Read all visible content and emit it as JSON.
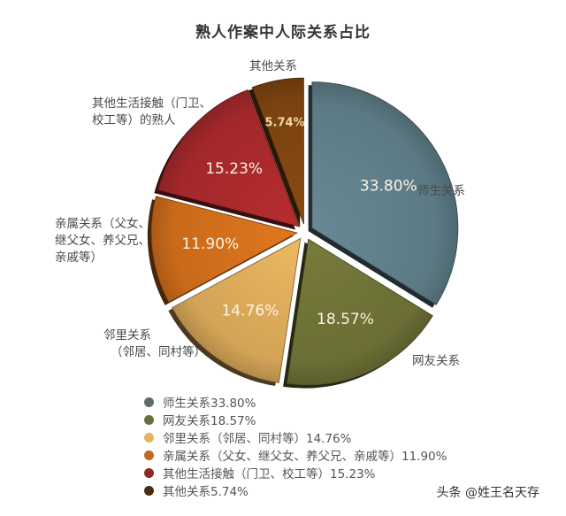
{
  "title": "熟人作案中人际关系占比",
  "chart_data": {
    "type": "pie",
    "title": "熟人作案中人际关系占比",
    "start_angle_deg": 0,
    "direction": "clockwise",
    "exploded": true,
    "slices": [
      {
        "label": "师生关系",
        "value": 33.8,
        "display": "33.80%",
        "color": "#5c7a84",
        "callout": [
          "师生关系"
        ],
        "legend": "师生关系33.80%"
      },
      {
        "label": "网友关系",
        "value": 18.57,
        "display": "18.57%",
        "color": "#6b6e35",
        "callout": [
          "网友关系"
        ],
        "legend": "网友关系18.57%"
      },
      {
        "label": "邻里关系（邻居、同村等）",
        "value": 14.76,
        "display": "14.76%",
        "color": "#d3a457",
        "callout": [
          "邻里关系",
          "（邻居、同村等）"
        ],
        "legend": "邻里关系（邻居、同村等）14.76%"
      },
      {
        "label": "亲属关系（父女、继父女、养父兄、亲戚等）",
        "value": 11.9,
        "display": "11.90%",
        "color": "#c96a1a",
        "callout": [
          "亲属关系（父女、",
          "继父女、养父兄、",
          "亲戚等）"
        ],
        "legend": "亲属关系（父女、继父女、养父兄、亲戚等）11.90%"
      },
      {
        "label": "其他生活接触（门卫、校工等）的熟人",
        "value": 15.23,
        "display": "15.23%",
        "color": "#a3282a",
        "callout": [
          "其他生活接触（门卫、",
          "校工等）的熟人"
        ],
        "legend": "其他生活接触（门卫、校工等）15.23%"
      },
      {
        "label": "其他关系",
        "value": 5.74,
        "display": "5.74%",
        "color": "#7a4210",
        "callout": [
          "其他关系"
        ],
        "legend": "其他关系5.74%"
      }
    ],
    "legend_position": "bottom"
  },
  "callouts": {
    "teacher": [
      "师生关系"
    ],
    "netfriend": [
      "网友关系"
    ],
    "neighbor": [
      "邻里关系",
      "（邻居、同村等）"
    ],
    "relative": [
      "亲属关系（父女、",
      "继父女、养父兄、",
      "亲戚等）"
    ],
    "daily": [
      "其他生活接触（门卫、",
      "校工等）的熟人"
    ],
    "other": [
      "其他关系"
    ]
  },
  "legend": [
    {
      "text": "师生关系33.80%",
      "color": "#5c6a6e"
    },
    {
      "text": "网友关系18.57%",
      "color": "#6b6e3a"
    },
    {
      "text": "邻里关系（邻居、同村等）14.76%",
      "color": "#e6b45e"
    },
    {
      "text": "亲属关系（父女、继父女、养父兄、亲戚等）11.90%",
      "color": "#c06a22"
    },
    {
      "text": "其他生活接触（门卫、校工等）15.23%",
      "color": "#8e2a24"
    },
    {
      "text": "其他关系5.74%",
      "color": "#4a2a10"
    }
  ],
  "watermark": "头条 @姓王名天存"
}
